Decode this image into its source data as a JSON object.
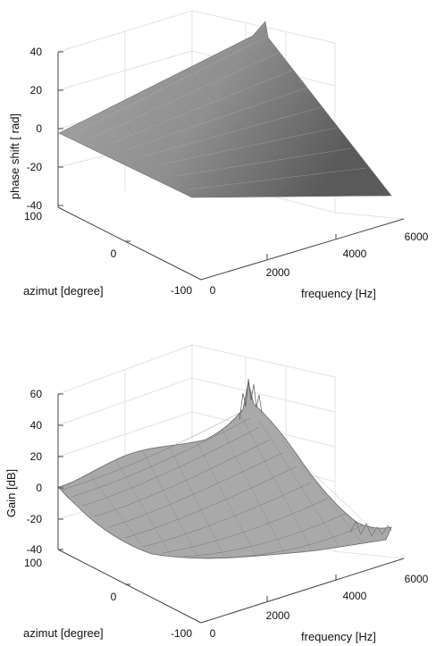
{
  "chart_data": [
    {
      "type": "surface",
      "surface_style": "shaded",
      "zlabel": "phase shift  [ rad]",
      "ylabel": "azimut [degree]",
      "xlabel": "frequency [Hz]",
      "x_ticks": [
        "0",
        "2000",
        "4000",
        "6000"
      ],
      "y_ticks": [
        "100",
        "0",
        "-100"
      ],
      "z_ticks": [
        "40",
        "20",
        "0",
        "-20",
        "-40"
      ],
      "xlim": [
        0,
        6000
      ],
      "ylim": [
        -100,
        100
      ],
      "zlim": [
        -40,
        40
      ],
      "grid": true,
      "corner_values": [
        {
          "frequency": 0,
          "azimut": -100,
          "z": 0
        },
        {
          "frequency": 0,
          "azimut": 100,
          "z": 0
        },
        {
          "frequency": 5900,
          "azimut": -100,
          "z": -35
        },
        {
          "frequency": 5900,
          "azimut": 100,
          "z": 55
        }
      ],
      "color": "#8c8c8c"
    },
    {
      "type": "surface",
      "surface_style": "mesh",
      "zlabel": "Gain [dB]",
      "ylabel": "azimut [degree]",
      "xlabel": "frequency [Hz]",
      "x_ticks": [
        "0",
        "2000",
        "4000",
        "6000"
      ],
      "y_ticks": [
        "100",
        "0",
        "-100"
      ],
      "z_ticks": [
        "60",
        "40",
        "20",
        "0",
        "-20",
        "-40"
      ],
      "xlim": [
        0,
        6000
      ],
      "ylim": [
        -100,
        100
      ],
      "zlim": [
        -40,
        60
      ],
      "grid": true,
      "peak_value": {
        "frequency": 5800,
        "azimut": 100,
        "z": 70
      },
      "color": "#8c8c8c"
    }
  ]
}
